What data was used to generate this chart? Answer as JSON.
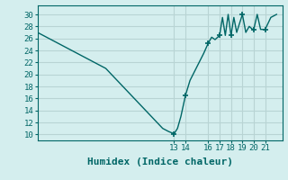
{
  "xlabel": "Humidex (Indice chaleur)",
  "bg_color": "#d4eeee",
  "grid_color": "#b8d4d4",
  "line_color": "#006666",
  "x_tick_labels": [
    "13",
    "14",
    "16",
    "17",
    "18",
    "19",
    "20",
    "21"
  ],
  "x_tick_positions": [
    13,
    14,
    16,
    17,
    18,
    19,
    20,
    21
  ],
  "yticks": [
    10,
    12,
    14,
    16,
    18,
    20,
    22,
    24,
    26,
    28,
    30
  ],
  "ylim": [
    9.0,
    31.5
  ],
  "xlim": [
    1,
    22.5
  ],
  "series_x": [
    1,
    1.5,
    2,
    2.5,
    3,
    3.5,
    4,
    4.5,
    5,
    5.5,
    6,
    6.5,
    7,
    7.5,
    8,
    8.5,
    9,
    9.5,
    10,
    10.5,
    11,
    11.5,
    12,
    12.5,
    13,
    13.3,
    13.6,
    14,
    14.4,
    14.8,
    15.2,
    15.6,
    16,
    16.3,
    16.6,
    17,
    17.25,
    17.5,
    17.75,
    18,
    18.25,
    18.5,
    18.75,
    19,
    19.3,
    19.6,
    19.9,
    20,
    20.3,
    20.6,
    21,
    21.5,
    22
  ],
  "series_y": [
    27,
    26.5,
    26,
    25.5,
    25,
    24.5,
    24,
    23.5,
    23,
    22.5,
    22,
    21.5,
    21,
    20,
    19,
    18,
    17,
    16,
    15,
    14,
    13,
    12,
    11,
    10.5,
    10.1,
    11,
    13,
    16.5,
    19,
    20.5,
    22,
    23.5,
    25.2,
    26.2,
    25.8,
    26.5,
    29.5,
    26.5,
    30,
    26.5,
    29.5,
    27,
    28.5,
    30,
    27,
    28,
    27.5,
    27.5,
    30,
    27.5,
    27.5,
    29.5,
    30
  ],
  "marker_x": [
    13,
    14,
    16,
    17,
    18,
    19,
    20,
    21
  ],
  "marker_y": [
    10.1,
    16.5,
    25.2,
    26.5,
    26.5,
    30,
    27.5,
    27.5
  ]
}
